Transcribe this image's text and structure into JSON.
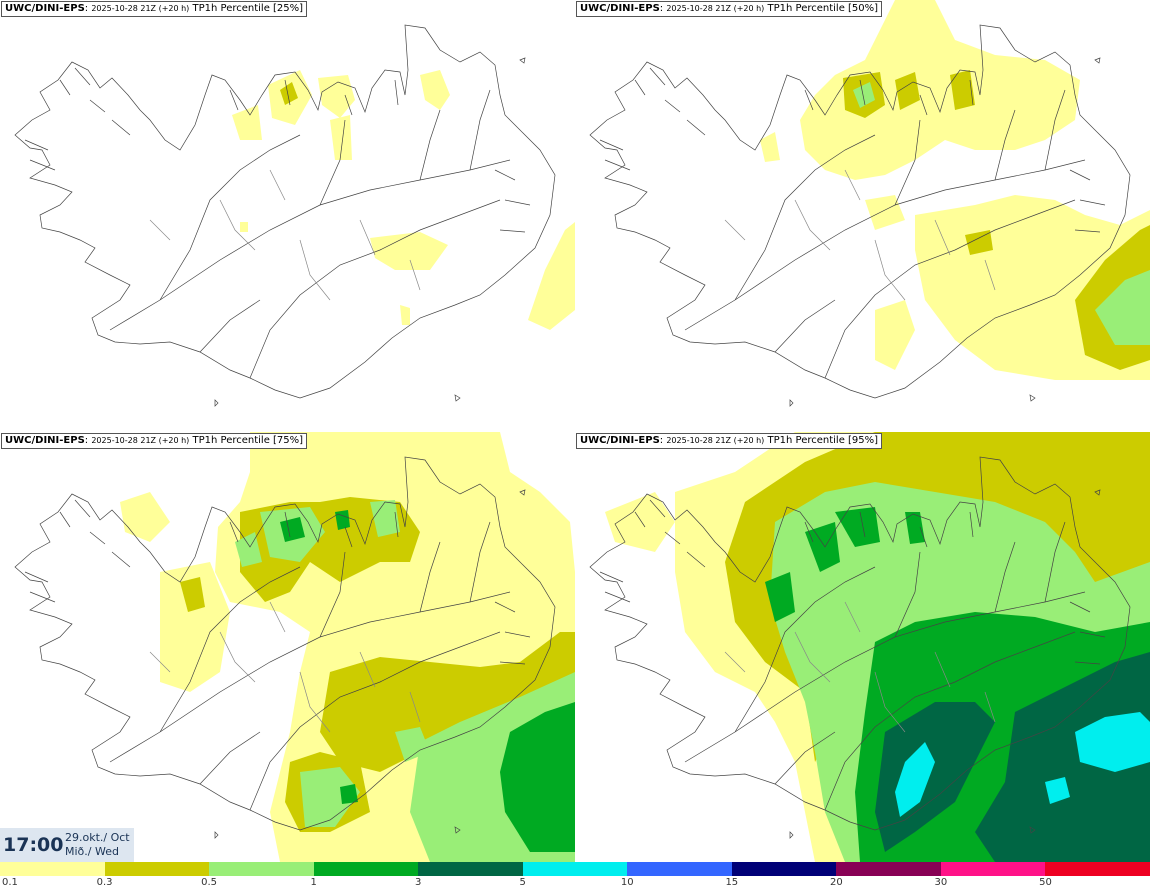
{
  "panels": [
    {
      "source": "UWC/DINI-EPS",
      "run": "2025-10-28 21Z (+20 h)",
      "field": "TP1h Percentile [25%]"
    },
    {
      "source": "UWC/DINI-EPS",
      "run": "2025-10-28 21Z (+20 h)",
      "field": "TP1h Percentile [50%]"
    },
    {
      "source": "UWC/DINI-EPS",
      "run": "2025-10-28 21Z (+20 h)",
      "field": "TP1h Percentile [75%]"
    },
    {
      "source": "UWC/DINI-EPS",
      "run": "2025-10-28 21Z (+20 h)",
      "field": "TP1h Percentile [95%]"
    }
  ],
  "timestamp": {
    "time": "17:00",
    "date_line1": "29.okt./ Oct",
    "date_line2": "Mið./ Wed"
  },
  "colorbar": {
    "labels": [
      "0.1",
      "0.3",
      "0.5",
      "1",
      "3",
      "5",
      "10",
      "15",
      "20",
      "30",
      "50"
    ],
    "colors": [
      "#ffff99",
      "#cccc00",
      "#99ee77",
      "#00aa22",
      "#006644",
      "#00eeee",
      "#3366ff",
      "#000077",
      "#880055",
      "#ff1188",
      "#ee0022"
    ]
  }
}
